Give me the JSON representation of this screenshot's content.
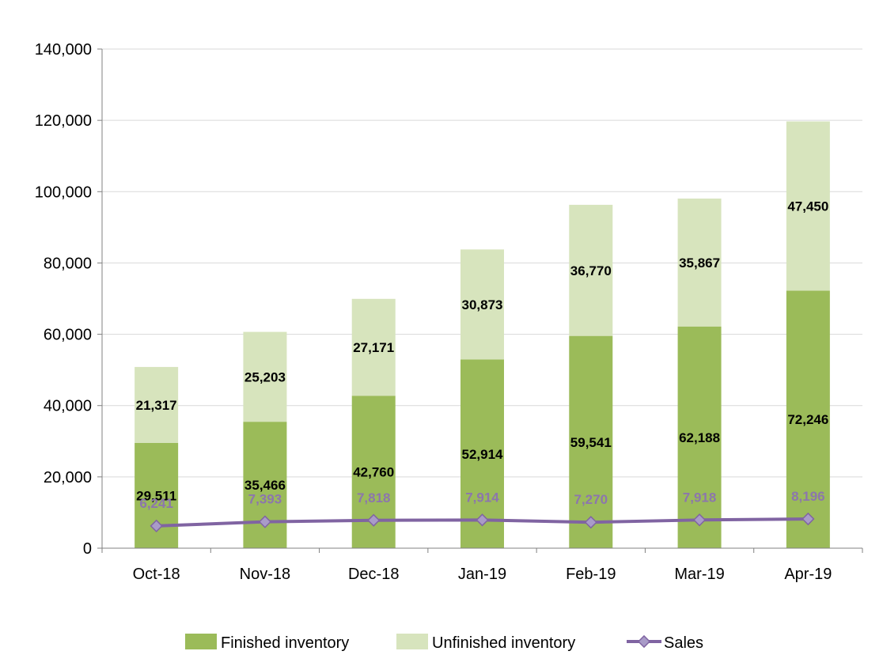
{
  "chart_data": {
    "type": "bar",
    "stacked": true,
    "categories": [
      "Oct-18",
      "Nov-18",
      "Dec-18",
      "Jan-19",
      "Feb-19",
      "Mar-19",
      "Apr-19"
    ],
    "series": [
      {
        "name": "Finished inventory",
        "kind": "bar",
        "color": "#9bbb59",
        "values": [
          29511,
          35466,
          42760,
          52914,
          59541,
          62188,
          72246
        ]
      },
      {
        "name": "Unfinished inventory",
        "kind": "bar",
        "color": "#d7e4bd",
        "values": [
          21317,
          25203,
          27171,
          30873,
          36770,
          35867,
          47450
        ]
      },
      {
        "name": "Sales",
        "kind": "line",
        "color": "#8064a2",
        "values": [
          6241,
          7393,
          7818,
          7914,
          7270,
          7918,
          8196
        ]
      }
    ],
    "data_labels": {
      "finished": [
        "29,511",
        "35,466",
        "42,760",
        "52,914",
        "59,541",
        "62,188",
        "72,246"
      ],
      "unfinished": [
        "21,317",
        "25,203",
        "27,171",
        "30,873",
        "36,770",
        "35,867",
        "47,450"
      ],
      "sales": [
        "6,241",
        "7,393",
        "7,818",
        "7,914",
        "7,270",
        "7,918",
        "8,196"
      ]
    },
    "y_ticks": [
      "0",
      "20,000",
      "40,000",
      "60,000",
      "80,000",
      "100,000",
      "120,000",
      "140,000"
    ],
    "ylim": [
      0,
      140000
    ],
    "grid": true,
    "legend_position": "bottom"
  }
}
